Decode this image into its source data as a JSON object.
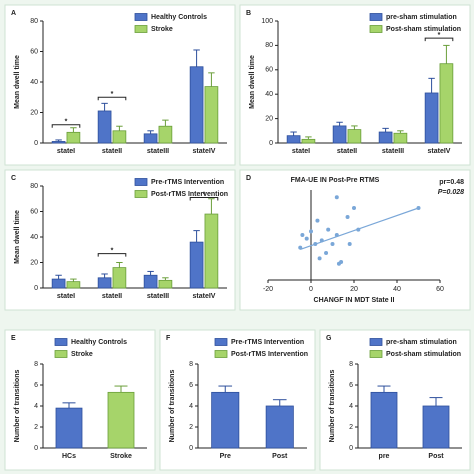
{
  "chart_data": [
    {
      "type": "bar",
      "label": "A",
      "ylabel": "Mean dwell time",
      "categories": [
        "stateI",
        "stateII",
        "stateIII",
        "stateIV"
      ],
      "series": [
        {
          "name": "Healthy Controls",
          "color": "#4f74c8",
          "values": [
            1,
            21,
            6,
            50
          ],
          "errors": [
            1,
            5,
            2,
            11
          ]
        },
        {
          "name": "Stroke",
          "color": "#a6d46a",
          "values": [
            7,
            8,
            11,
            37
          ],
          "errors": [
            3,
            3,
            4,
            9
          ]
        }
      ],
      "ylim": [
        0,
        80
      ],
      "yticks": [
        0,
        20,
        40,
        60,
        80
      ],
      "annotations": [
        {
          "text": "*",
          "category": "stateI",
          "y": 12
        },
        {
          "text": "*",
          "category": "stateII",
          "y": 30
        }
      ]
    },
    {
      "type": "bar",
      "label": "B",
      "ylabel": "Mean dwell time",
      "categories": [
        "stateI",
        "stateII",
        "stateIII",
        "stateIV"
      ],
      "series": [
        {
          "name": "pre-sham stimulation",
          "color": "#4f74c8",
          "values": [
            6,
            14,
            9,
            41
          ],
          "errors": [
            3,
            3,
            3,
            12
          ]
        },
        {
          "name": "Post-sham stimulation",
          "color": "#a6d46a",
          "values": [
            3,
            11,
            8,
            65
          ],
          "errors": [
            2,
            3,
            2,
            15
          ]
        }
      ],
      "ylim": [
        0,
        100
      ],
      "yticks": [
        0,
        20,
        40,
        60,
        80,
        100
      ],
      "annotations": [
        {
          "text": "*",
          "category": "stateIV",
          "y": 86
        }
      ]
    },
    {
      "type": "bar",
      "label": "C",
      "ylabel": "Mean dwell time",
      "categories": [
        "stateI",
        "stateII",
        "stateIII",
        "stateIV"
      ],
      "series": [
        {
          "name": "Pre-rTMS Intervention",
          "color": "#4f74c8",
          "values": [
            7,
            8,
            10,
            36
          ],
          "errors": [
            3,
            3,
            3,
            9
          ]
        },
        {
          "name": "Post-rTMS Intervention",
          "color": "#a6d46a",
          "values": [
            5,
            16,
            6,
            58
          ],
          "errors": [
            2,
            4,
            2,
            12
          ]
        }
      ],
      "ylim": [
        0,
        80
      ],
      "yticks": [
        0,
        20,
        40,
        60,
        80
      ],
      "annotations": [
        {
          "text": "*",
          "category": "stateII",
          "y": 27
        },
        {
          "text": "*",
          "category": "stateIV",
          "y": 71
        }
      ]
    },
    {
      "type": "scatter",
      "label": "D",
      "title": "FMA-UE IN Post-Pre RTMS",
      "xlabel": "CHANGF IN MDT State II",
      "annotations": [
        "pr=0.48",
        "P=0.028"
      ],
      "color": "#7aa7d8",
      "x": [
        -4,
        -2,
        0,
        2,
        3,
        5,
        7,
        8,
        10,
        12,
        12,
        13,
        14,
        17,
        18,
        20,
        22,
        50,
        -5,
        4
      ],
      "y": [
        25,
        23,
        27,
        20,
        33,
        22,
        15,
        28,
        20,
        46,
        25,
        9,
        10,
        35,
        20,
        40,
        28,
        40,
        18,
        12
      ],
      "trend_line": {
        "x": [
          -5,
          50
        ],
        "y": [
          17,
          40
        ]
      },
      "xlim": [
        -20,
        60
      ],
      "xticks": [
        -20,
        0,
        20,
        40,
        60
      ],
      "ylim": [
        0,
        50
      ]
    },
    {
      "type": "bar",
      "label": "E",
      "ylabel": "Number of transitions",
      "categories": [
        "HCs",
        "Stroke"
      ],
      "values": [
        3.8,
        5.3
      ],
      "errors": [
        0.5,
        0.6
      ],
      "colors": [
        "#4f74c8",
        "#a6d46a"
      ],
      "legend": [
        {
          "name": "Healthy Controls",
          "color": "#4f74c8"
        },
        {
          "name": "Stroke",
          "color": "#a6d46a"
        }
      ],
      "ylim": [
        0,
        8
      ],
      "yticks": [
        0,
        2,
        4,
        6,
        8
      ]
    },
    {
      "type": "bar",
      "label": "F",
      "ylabel": "Number of transitions",
      "categories": [
        "Pre",
        "Post"
      ],
      "values": [
        5.3,
        4.0
      ],
      "errors": [
        0.6,
        0.6
      ],
      "colors": [
        "#4f74c8",
        "#4f74c8"
      ],
      "legend": [
        {
          "name": "Pre-rTMS Intervention",
          "color": "#4f74c8"
        },
        {
          "name": "Post-rTMS Intervention",
          "color": "#a6d46a"
        }
      ],
      "ylim": [
        0,
        8
      ],
      "yticks": [
        0,
        2,
        4,
        6,
        8
      ]
    },
    {
      "type": "bar",
      "label": "G",
      "ylabel": "Number of transitions",
      "categories": [
        "pre",
        "Post"
      ],
      "values": [
        5.3,
        4.0
      ],
      "errors": [
        0.6,
        0.8
      ],
      "colors": [
        "#4f74c8",
        "#4f74c8"
      ],
      "legend": [
        {
          "name": "pre-sham stimulation",
          "color": "#4f74c8"
        },
        {
          "name": "Post-sham stimulation",
          "color": "#a6d46a"
        }
      ],
      "ylim": [
        0,
        8
      ],
      "yticks": [
        0,
        2,
        4,
        6,
        8
      ]
    }
  ]
}
